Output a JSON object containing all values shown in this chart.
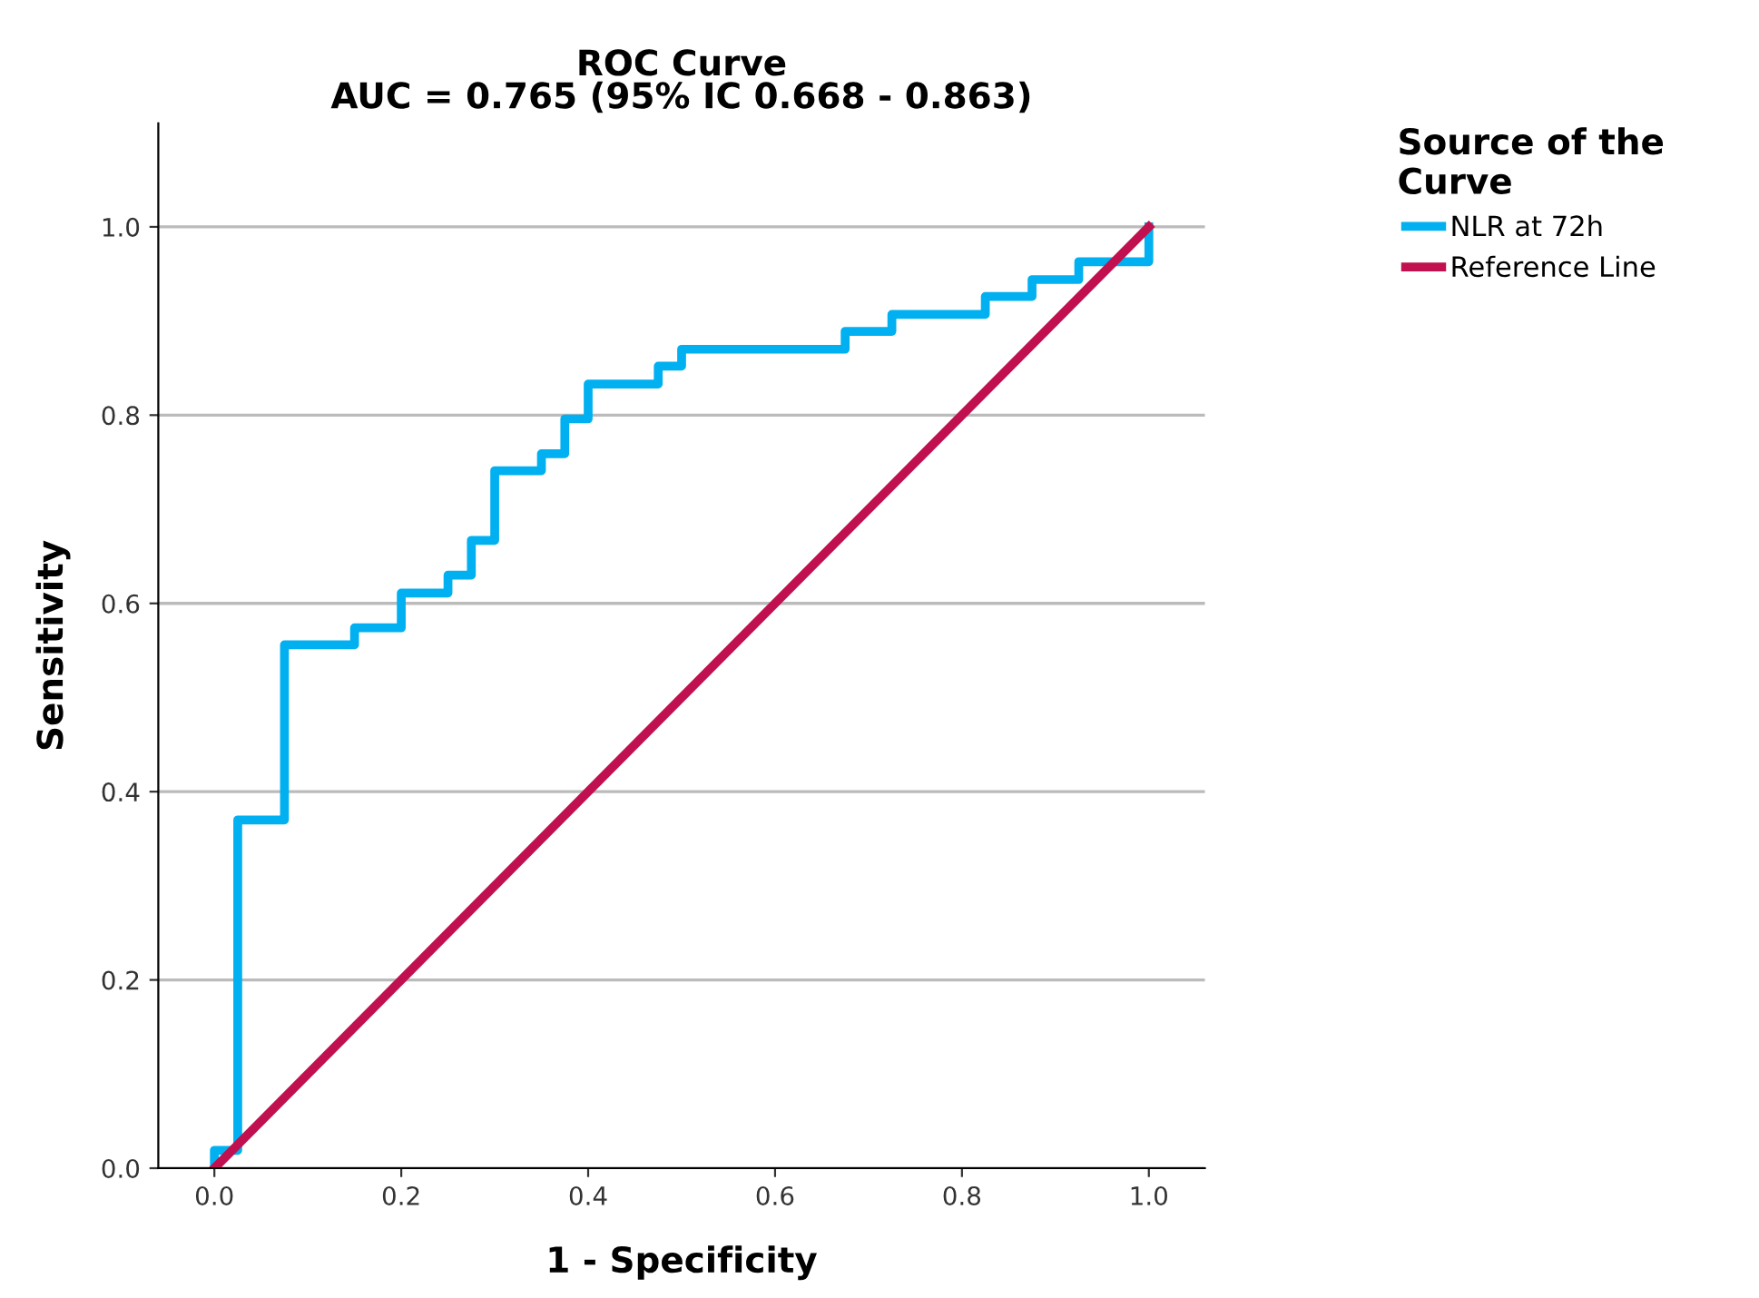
{
  "chart_data": {
    "type": "step",
    "title": "ROC Curve\nAUC = 0.765 (95% IC 0.668 - 0.863)",
    "xlabel": "1 - Specificity",
    "ylabel": "Sensitivity",
    "legend_title": "Source of the\nCurve",
    "series": [
      {
        "name": "NLR at 72h",
        "color": "#00b0f0",
        "x": [
          0,
          0,
          0.025,
          0.075,
          0.15,
          0.2,
          0.25,
          0.275,
          0.3,
          0.35,
          0.375,
          0.4,
          0.475,
          0.5,
          0.675,
          0.725,
          0.825,
          0.875,
          0.925,
          1.0
        ],
        "values": [
          0,
          0.019,
          0.37,
          0.556,
          0.574,
          0.611,
          0.63,
          0.667,
          0.741,
          0.759,
          0.796,
          0.833,
          0.852,
          0.87,
          0.889,
          0.907,
          0.926,
          0.944,
          0.963,
          1.0
        ]
      },
      {
        "name": "Reference Line",
        "color": "#c0104f",
        "type": "line",
        "x": [
          0,
          1
        ],
        "values": [
          0,
          1
        ]
      }
    ],
    "xlim": [
      -0.06,
      1.06
    ],
    "ylim": [
      0,
      1.11
    ],
    "xticks": [
      {
        "value": 0,
        "label": "0.0"
      },
      0.2,
      0.4,
      0.6,
      0.8,
      {
        "value": 1,
        "label": "1.0"
      }
    ],
    "yticks": [
      {
        "value": 0,
        "label": "0.0"
      },
      0.2,
      0.4,
      0.6,
      0.8,
      {
        "value": 1,
        "label": "1.0"
      }
    ],
    "grid": "y",
    "legend": "top right"
  }
}
